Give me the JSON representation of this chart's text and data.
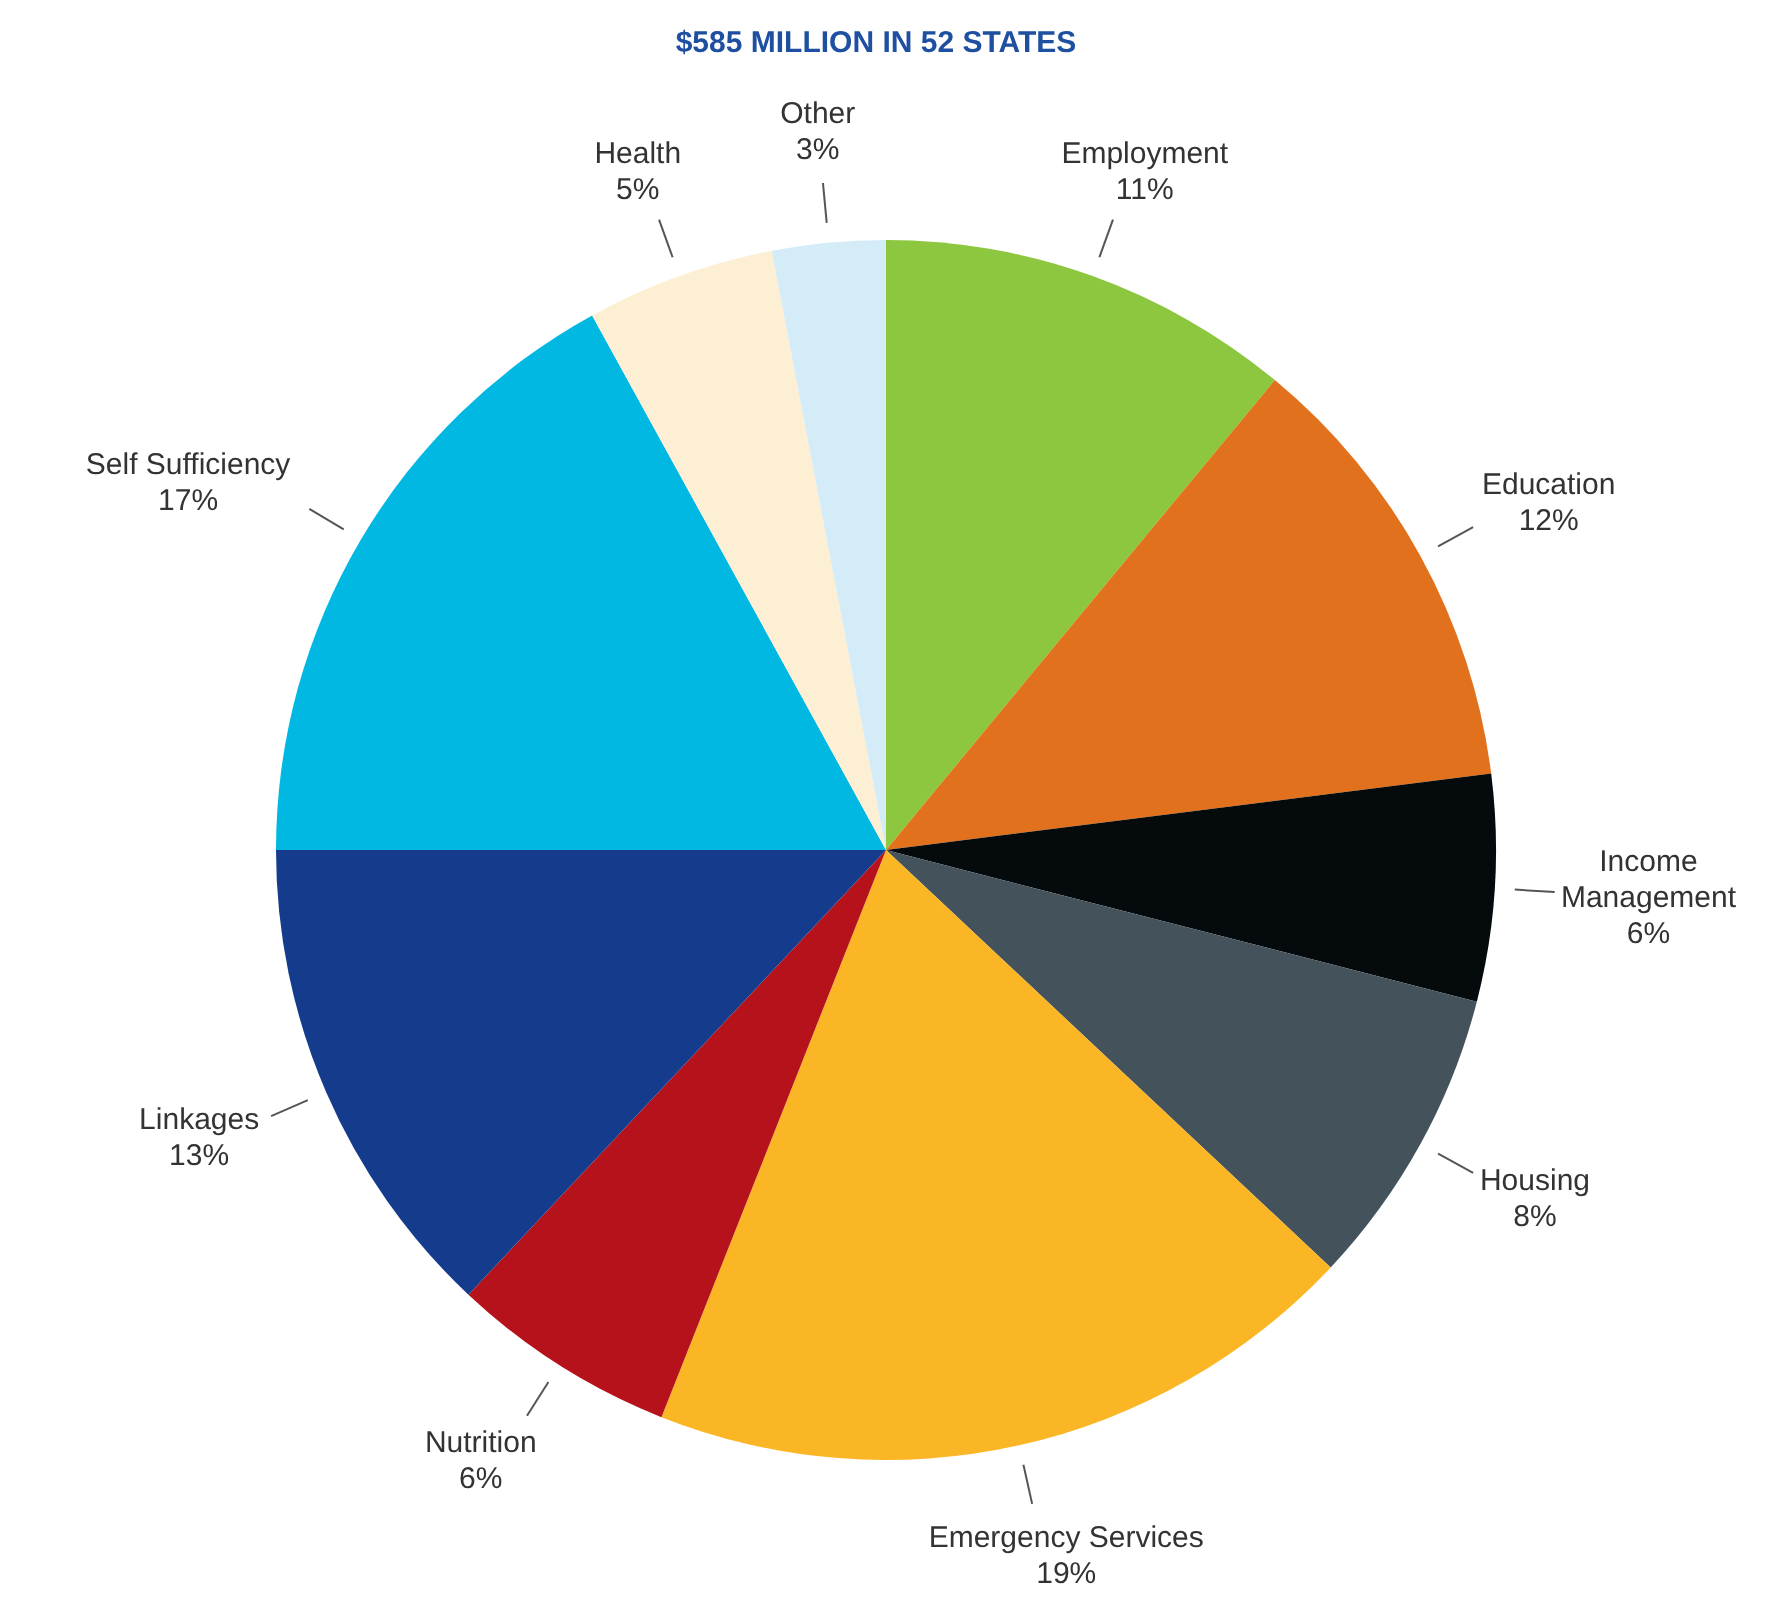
{
  "chart_data": {
    "type": "pie",
    "title": "$585 MILLION IN 52 STATES",
    "categories": [
      "Employment",
      "Education",
      "Income Management",
      "Housing",
      "Emergency Services",
      "Nutrition",
      "Linkages",
      "Self Sufficiency",
      "Health",
      "Other"
    ],
    "values": [
      11,
      12,
      6,
      8,
      19,
      6,
      13,
      17,
      5,
      3
    ],
    "value_labels": [
      "11%",
      "12%",
      "6%",
      "8%",
      "19%",
      "6%",
      "13%",
      "17%",
      "5%",
      "3%"
    ],
    "colors": [
      "#8dc63f",
      "#e2711d",
      "#050a0c",
      "#44525c",
      "#fbb626",
      "#b5121b",
      "#143b8c",
      "#00b8e2",
      "#fdefd3",
      "#d4ecf7"
    ]
  }
}
